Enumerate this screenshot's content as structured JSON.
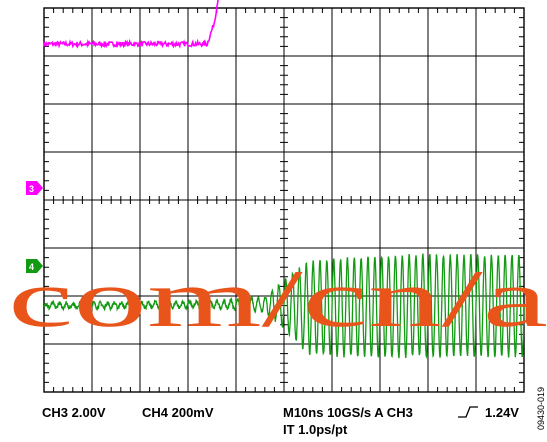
{
  "chart_data": {
    "type": "line",
    "title": "",
    "xlabel": "",
    "ylabel": "",
    "grid": true,
    "divisions": {
      "x": 10,
      "y": 8
    },
    "series": [
      {
        "name": "",
        "channel_marker": "3",
        "color": "#ff00ff",
        "ground_div": 3.2,
        "x_div": [
          0,
          2.0,
          3.4,
          3.55,
          3.7,
          3.85,
          4.0,
          4.1,
          4.2,
          4.35,
          4.5,
          4.65,
          4.8,
          4.95,
          5.1,
          5.3,
          5.6,
          6.0,
          7.0,
          8.0,
          9.0,
          10.0
        ],
        "y_div": [
          0.05,
          0.05,
          0.05,
          0.5,
          1.5,
          2.2,
          2.4,
          2.3,
          2.05,
          1.85,
          1.8,
          1.9,
          1.98,
          1.96,
          1.84,
          1.88,
          1.85,
          1.87,
          1.86,
          1.87,
          1.87,
          1.87
        ],
        "noise_div": 0.05
      },
      {
        "name": "",
        "channel_marker": "4",
        "color": "#129a12",
        "ground_div": -2.2,
        "x_div": [
          0,
          3.5,
          4.6,
          5.0,
          5.5,
          6.0,
          7.0,
          8.0,
          9.0,
          10.0
        ],
        "amp_div": [
          0.05,
          0.06,
          0.15,
          0.5,
          0.95,
          1.0,
          1.05,
          1.05,
          1.05,
          1.05
        ],
        "offset_div": [
          0,
          0.02,
          0.03,
          0.03,
          -0.05,
          -0.05,
          -0.03,
          0,
          0,
          0
        ],
        "oscillation_cycles": 70
      }
    ]
  },
  "status": {
    "ch3": "CH3  2.00V",
    "ch4": "CH4  200mV",
    "timebase": "M10ns  10GS/s  A  CH3",
    "trigger_icon": "rising-edge-icon",
    "trigger_level": "1.24V",
    "interp": "IT 1.0ps/pt"
  },
  "figure_id": "09430-019",
  "watermark": "com/cn/a",
  "colors": {
    "grid": "#000000",
    "watermark": "#e8541a"
  }
}
